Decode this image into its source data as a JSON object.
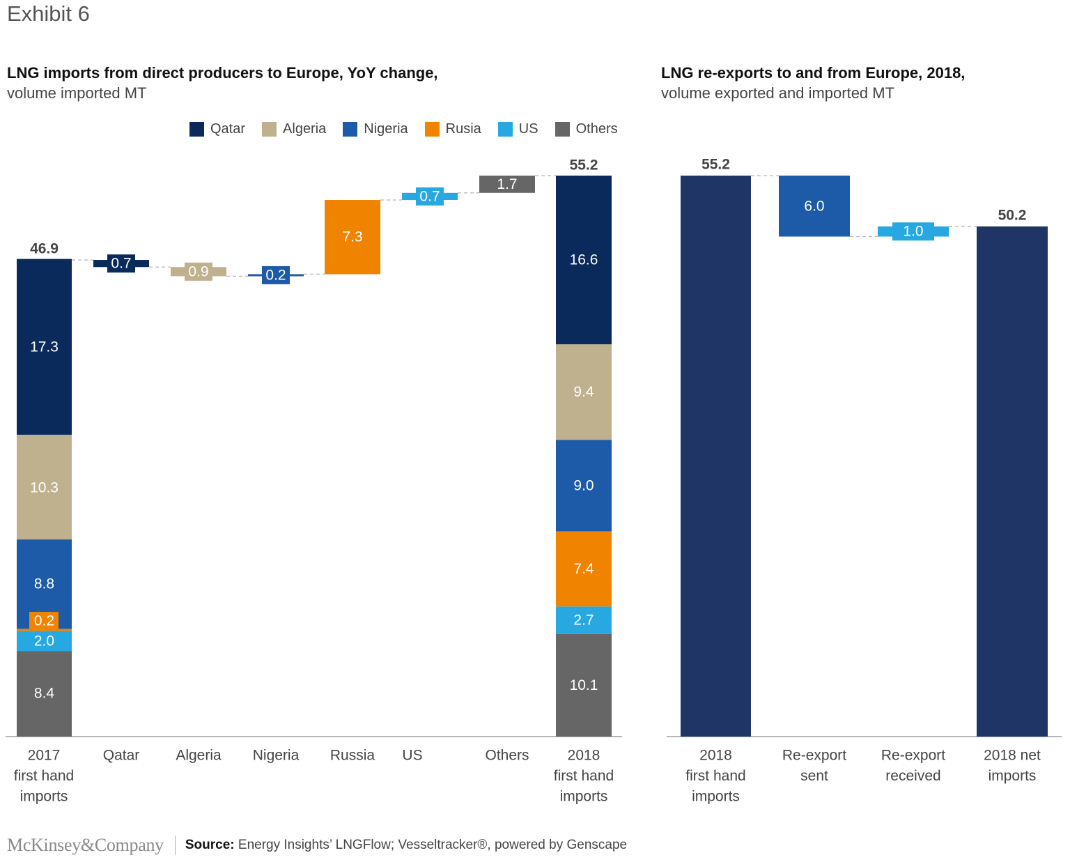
{
  "exhibit": "Exhibit 6",
  "colors": {
    "Qatar": "#0a2a5c",
    "Algeria": "#bfb08e",
    "Nigeria": "#1d5aa8",
    "Russia": "#f08300",
    "US": "#27a8e0",
    "Others": "#666666",
    "net": "#1e3566"
  },
  "legend": [
    {
      "label": "Qatar",
      "color": "#0a2a5c",
      "icon": "square-swatch-icon"
    },
    {
      "label": "Algeria",
      "color": "#bfb08e",
      "icon": "square-swatch-icon"
    },
    {
      "label": "Nigeria",
      "color": "#1d5aa8",
      "icon": "square-swatch-icon"
    },
    {
      "label": "Rusia",
      "color": "#f08300",
      "icon": "square-swatch-icon"
    },
    {
      "label": "US",
      "color": "#27a8e0",
      "icon": "square-swatch-icon"
    },
    {
      "label": "Others",
      "color": "#666666",
      "icon": "square-swatch-icon"
    }
  ],
  "chart_data": [
    {
      "type": "waterfall",
      "title": "LNG imports from direct producers to Europe, YoY change,",
      "subtitle": "volume imported MT",
      "ylim": [
        0,
        55.2
      ],
      "start": {
        "label": [
          "2017",
          "first hand",
          "imports"
        ],
        "total": 46.9,
        "total_label": "46.9",
        "stack": [
          {
            "series": "Others",
            "value": 8.4,
            "label": "8.4"
          },
          {
            "series": "US",
            "value": 2.0,
            "label": "2.0"
          },
          {
            "series": "Russia",
            "value": 0.2,
            "label": "0.2"
          },
          {
            "series": "Nigeria",
            "value": 8.8,
            "label": "8.8"
          },
          {
            "series": "Algeria",
            "value": 10.3,
            "label": "10.3"
          },
          {
            "series": "Qatar",
            "value": 17.3,
            "label": "17.3"
          }
        ]
      },
      "steps": [
        {
          "category": "Qatar",
          "series": "Qatar",
          "value": -0.7,
          "label": "0.7"
        },
        {
          "category": "Algeria",
          "series": "Algeria",
          "value": -0.9,
          "label": "0.9"
        },
        {
          "category": "Nigeria",
          "series": "Nigeria",
          "value": 0.2,
          "label": "0.2"
        },
        {
          "category": "Russia",
          "series": "Russia",
          "value": 7.3,
          "label": "7.3"
        },
        {
          "category": "US",
          "series": "US",
          "value": 0.7,
          "label": "0.7"
        },
        {
          "category": "Others",
          "series": "Others",
          "value": 1.7,
          "label": "1.7"
        }
      ],
      "end": {
        "label": [
          "2018",
          "first hand",
          "imports"
        ],
        "total": 55.2,
        "total_label": "55.2",
        "stack": [
          {
            "series": "Others",
            "value": 10.1,
            "label": "10.1"
          },
          {
            "series": "US",
            "value": 2.7,
            "label": "2.7"
          },
          {
            "series": "Russia",
            "value": 7.4,
            "label": "7.4"
          },
          {
            "series": "Nigeria",
            "value": 9.0,
            "label": "9.0"
          },
          {
            "series": "Algeria",
            "value": 9.4,
            "label": "9.4"
          },
          {
            "series": "Qatar",
            "value": 16.6,
            "label": "16.6"
          }
        ]
      }
    },
    {
      "type": "waterfall",
      "title": "LNG re-exports to and from Europe, 2018,",
      "subtitle": "volume exported and imported MT",
      "ylim": [
        0,
        55.2
      ],
      "bars": [
        {
          "category": [
            "2018",
            "first hand",
            "imports"
          ],
          "kind": "total",
          "value": 55.2,
          "label": "55.2",
          "series": "net"
        },
        {
          "category": [
            "Re-export",
            "sent"
          ],
          "kind": "delta",
          "value": -6.0,
          "label": "6.0",
          "series": "Nigeria"
        },
        {
          "category": [
            "Re-export",
            "received"
          ],
          "kind": "delta",
          "value": 1.0,
          "label": "1.0",
          "series": "US"
        },
        {
          "category": [
            "2018 net",
            "imports"
          ],
          "kind": "total",
          "value": 50.2,
          "label": "50.2",
          "series": "net"
        }
      ]
    }
  ],
  "footer": {
    "logo": "McKinsey&Company",
    "source_label": "Source:",
    "source_text": "Energy Insights’ LNGFlow; Vesseltracker®, powered by Genscape"
  }
}
